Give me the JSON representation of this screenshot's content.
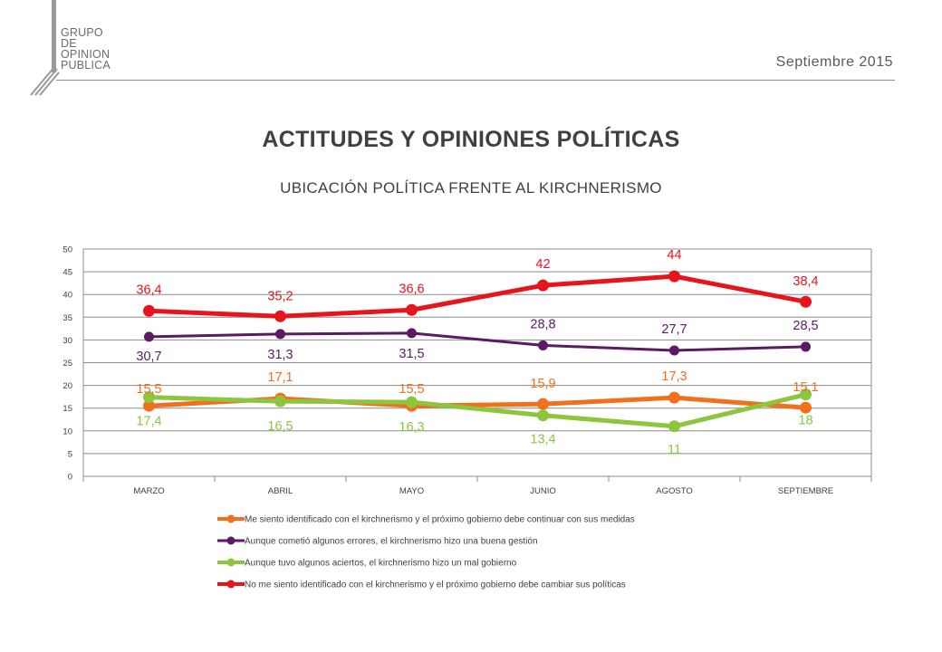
{
  "logo": {
    "lines": [
      "GRUPO",
      "DE",
      "OPINION",
      "PUBLICA"
    ]
  },
  "header": {
    "date": "Septiembre 2015"
  },
  "title": "ACTITUDES Y OPINIONES POLÍTICAS",
  "subtitle": "UBICACIÓN POLÍTICA FRENTE AL KIRCHNERISMO",
  "chart_data": {
    "type": "line",
    "categories": [
      "MARZO",
      "ABRIL",
      "MAYO",
      "JUNIO",
      "AGOSTO",
      "SEPTIEMBRE"
    ],
    "ylim": [
      0,
      50
    ],
    "yticks": [
      0,
      5,
      10,
      15,
      20,
      25,
      30,
      35,
      40,
      45,
      50
    ],
    "grid": true,
    "legend_position": "bottom",
    "series": [
      {
        "name": "Me siento identificado con el kirchnerismo y el próximo gobierno debe continuar con sus medidas",
        "color": "#f26f1c",
        "values": [
          15.5,
          17.1,
          15.5,
          15.9,
          17.3,
          15.1
        ],
        "labels": [
          "15,5",
          "17,1",
          "15,5",
          "15,9",
          "17,3",
          "15,1"
        ]
      },
      {
        "name": "Aunque cometió algunos errores, el kirchnerismo hizo una buena gestión",
        "color": "#5b1a63",
        "values": [
          30.7,
          31.3,
          31.5,
          28.8,
          27.7,
          28.5
        ],
        "labels": [
          "30,7",
          "31,3",
          "31,5",
          "28,8",
          "27,7",
          "28,5"
        ]
      },
      {
        "name": "Aunque tuvo algunos aciertos, el kirchnerismo hizo un mal gobierno",
        "color": "#8cc63f",
        "values": [
          17.4,
          16.5,
          16.3,
          13.4,
          11,
          18
        ],
        "labels": [
          "17,4",
          "16,5",
          "16,3",
          "13,4",
          "11",
          "18"
        ]
      },
      {
        "name": "No me siento identificado con el kirchnerismo y el próximo gobierno debe cambiar sus políticas",
        "color": "#e8141b",
        "values": [
          36.4,
          35.2,
          36.6,
          42,
          44,
          38.4
        ],
        "labels": [
          "36,4",
          "35,2",
          "36,6",
          "42",
          "44",
          "38,4"
        ]
      }
    ]
  }
}
